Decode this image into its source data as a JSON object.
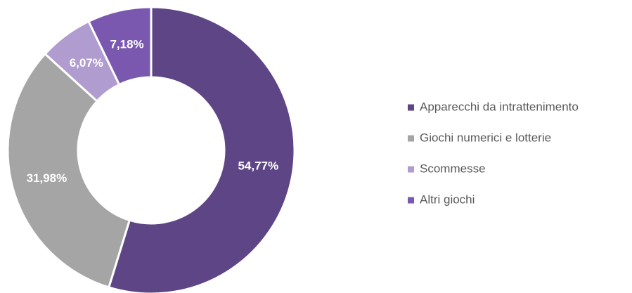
{
  "chart_data": {
    "type": "donut",
    "categories": [
      "Apparecchi da intrattenimento",
      "Giochi numerici e lotterie",
      "Scommesse",
      "Altri giochi"
    ],
    "values": [
      54.77,
      31.98,
      6.07,
      7.18
    ],
    "value_labels": [
      "54,77%",
      "31,98%",
      "6,07%",
      "7,18%"
    ],
    "colors": [
      "#5e4585",
      "#a5a5a5",
      "#b19cd0",
      "#7a58b0"
    ],
    "legend": "right"
  }
}
